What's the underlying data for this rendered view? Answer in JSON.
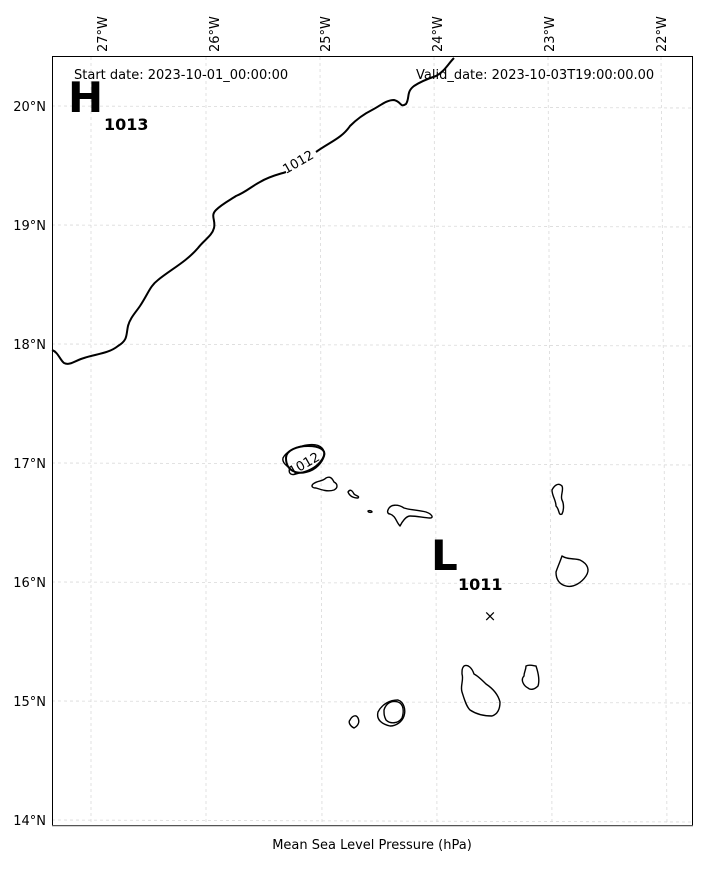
{
  "header": {
    "start_date": "Start date: 2023-10-01_00:00:00",
    "valid_date": "Valid_date: 2023-10-03T19:00:00.00"
  },
  "caption": "Mean Sea Level Pressure (hPa)",
  "axes": {
    "longitude_ticks": [
      "27°W",
      "26°W",
      "25°W",
      "24°W",
      "23°W",
      "22°W"
    ],
    "latitude_ticks": [
      "20°N",
      "19°N",
      "18°N",
      "17°N",
      "16°N",
      "15°N",
      "14°N"
    ]
  },
  "pressure_centers": [
    {
      "type": "high",
      "letter": "H",
      "value": "1013"
    },
    {
      "type": "low",
      "letter": "L",
      "value": "1011"
    }
  ],
  "isobar_labels": [
    "1012",
    "1012"
  ],
  "marker": {
    "symbol": "×"
  },
  "chart_data": {
    "type": "map",
    "title": "",
    "xlabel": "Mean Sea Level Pressure (hPa)",
    "lon_range": [
      -27.3,
      -21.7
    ],
    "lat_range": [
      13.95,
      20.4
    ],
    "grid": true,
    "pressure_centers": [
      {
        "label": "H",
        "value": 1013,
        "lon": -27.0,
        "lat": 20.05
      },
      {
        "label": "L",
        "value": 1011,
        "lon": -23.9,
        "lat": 16.2
      }
    ],
    "isobars": [
      {
        "value": 1012
      }
    ],
    "storm_marker": {
      "symbol": "x",
      "lon": -23.6,
      "lat": 15.7
    }
  }
}
